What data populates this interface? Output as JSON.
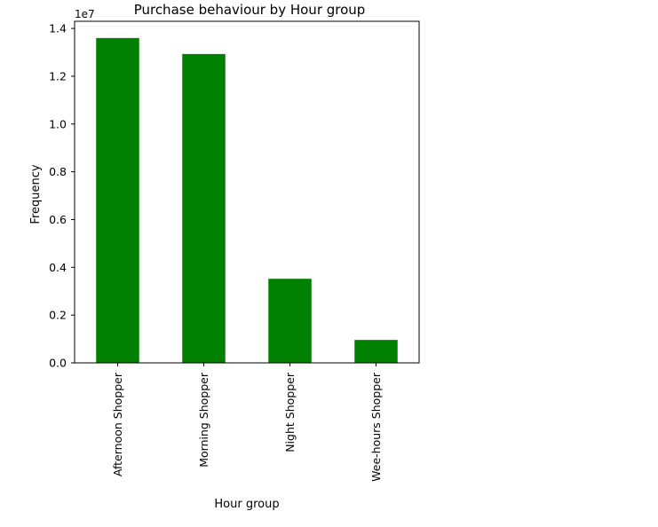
{
  "chart_data": {
    "type": "bar",
    "title": "Purchase behaviour by Hour group",
    "xlabel": "Hour group",
    "ylabel": "Frequency",
    "y_scale_label": "1e7",
    "categories": [
      "Afternoon Shopper",
      "Morning Shopper",
      "Night Shopper",
      "Wee-hours Shopper"
    ],
    "values": [
      13600000,
      12930000,
      3520000,
      960000
    ],
    "ylim": [
      0,
      14300000
    ],
    "y_ticks": [
      {
        "value": 0,
        "label": "0.0"
      },
      {
        "value": 2000000,
        "label": "0.2"
      },
      {
        "value": 4000000,
        "label": "0.4"
      },
      {
        "value": 6000000,
        "label": "0.6"
      },
      {
        "value": 8000000,
        "label": "0.8"
      },
      {
        "value": 10000000,
        "label": "1.0"
      },
      {
        "value": 12000000,
        "label": "1.2"
      },
      {
        "value": 14000000,
        "label": "1.4"
      }
    ],
    "bar_color": "#008000",
    "grid": false,
    "legend": "none"
  }
}
